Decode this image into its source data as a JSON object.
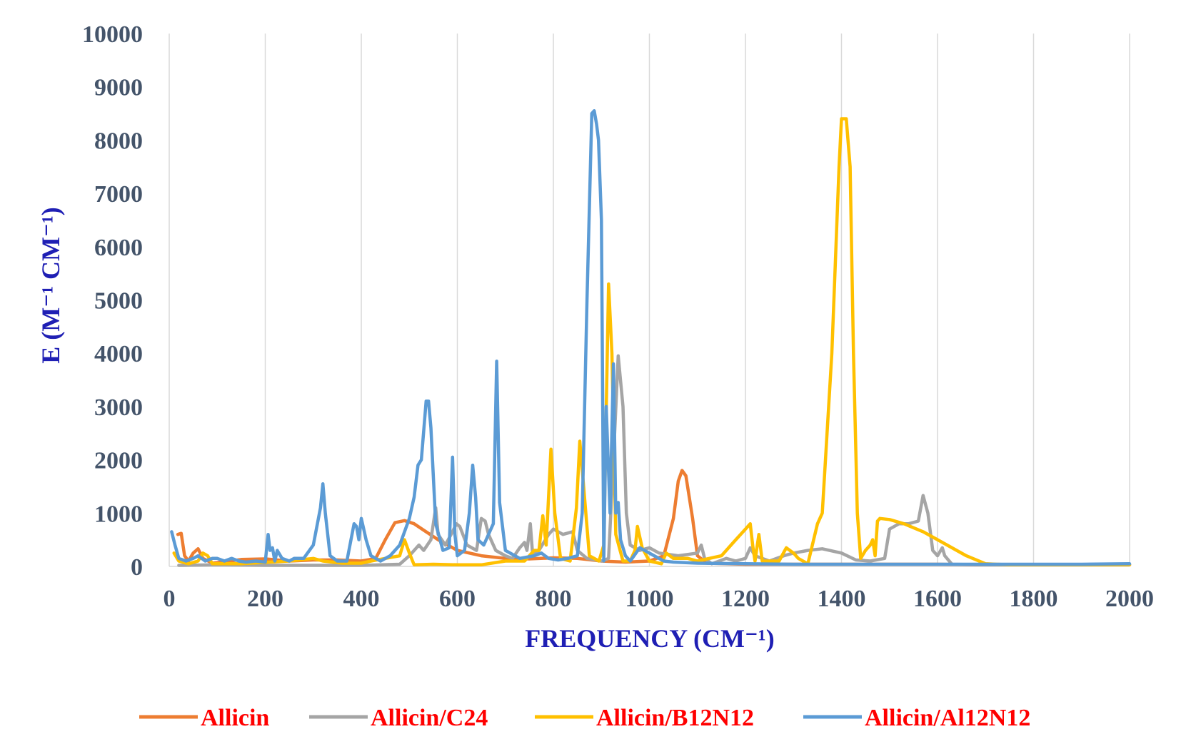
{
  "chart_data": {
    "type": "line",
    "xlabel": "FREQUENCY (CM⁻¹)",
    "ylabel": "E (M⁻¹ CM⁻¹)",
    "xlim": [
      0,
      2000
    ],
    "ylim": [
      0,
      10000
    ],
    "x_ticks": [
      "0",
      "200",
      "400",
      "600",
      "800",
      "1000",
      "1200",
      "1400",
      "1600",
      "1800",
      "2000"
    ],
    "y_ticks": [
      "0",
      "1000",
      "2000",
      "3000",
      "4000",
      "5000",
      "6000",
      "7000",
      "8000",
      "9000",
      "10000"
    ],
    "grid": "vertical",
    "legend_position": "bottom",
    "colors": {
      "axis_text": "#44546a",
      "axis_title": "#1f1fb4",
      "legend_text": "#ff0000",
      "grid": "#d9d9d9"
    },
    "series": [
      {
        "name": "Allicin",
        "color": "#ed7d31",
        "points": [
          [
            18,
            600
          ],
          [
            25,
            620
          ],
          [
            32,
            200
          ],
          [
            40,
            100
          ],
          [
            50,
            250
          ],
          [
            60,
            330
          ],
          [
            70,
            150
          ],
          [
            90,
            60
          ],
          [
            110,
            80
          ],
          [
            150,
            130
          ],
          [
            200,
            140
          ],
          [
            250,
            100
          ],
          [
            300,
            120
          ],
          [
            350,
            120
          ],
          [
            400,
            100
          ],
          [
            430,
            150
          ],
          [
            450,
            500
          ],
          [
            470,
            820
          ],
          [
            490,
            860
          ],
          [
            510,
            800
          ],
          [
            530,
            680
          ],
          [
            560,
            500
          ],
          [
            600,
            300
          ],
          [
            650,
            200
          ],
          [
            700,
            150
          ],
          [
            750,
            140
          ],
          [
            800,
            160
          ],
          [
            850,
            150
          ],
          [
            900,
            100
          ],
          [
            950,
            80
          ],
          [
            1000,
            100
          ],
          [
            1030,
            200
          ],
          [
            1050,
            900
          ],
          [
            1060,
            1600
          ],
          [
            1068,
            1800
          ],
          [
            1076,
            1700
          ],
          [
            1090,
            900
          ],
          [
            1100,
            200
          ],
          [
            1120,
            60
          ],
          [
            1200,
            40
          ],
          [
            1300,
            40
          ],
          [
            1400,
            40
          ],
          [
            1500,
            40
          ],
          [
            1600,
            40
          ],
          [
            1700,
            30
          ],
          [
            1800,
            30
          ],
          [
            1900,
            30
          ],
          [
            2000,
            30
          ]
        ]
      },
      {
        "name": "Allicin/C24",
        "color": "#a5a5a5",
        "points": [
          [
            20,
            20
          ],
          [
            100,
            30
          ],
          [
            200,
            20
          ],
          [
            300,
            20
          ],
          [
            400,
            20
          ],
          [
            480,
            40
          ],
          [
            500,
            200
          ],
          [
            520,
            400
          ],
          [
            530,
            300
          ],
          [
            545,
            500
          ],
          [
            555,
            1100
          ],
          [
            560,
            600
          ],
          [
            575,
            400
          ],
          [
            590,
            650
          ],
          [
            598,
            800
          ],
          [
            605,
            750
          ],
          [
            620,
            400
          ],
          [
            640,
            300
          ],
          [
            650,
            900
          ],
          [
            658,
            850
          ],
          [
            665,
            600
          ],
          [
            680,
            300
          ],
          [
            700,
            200
          ],
          [
            715,
            150
          ],
          [
            730,
            350
          ],
          [
            740,
            450
          ],
          [
            745,
            300
          ],
          [
            752,
            800
          ],
          [
            757,
            200
          ],
          [
            770,
            300
          ],
          [
            790,
            600
          ],
          [
            800,
            700
          ],
          [
            820,
            600
          ],
          [
            840,
            650
          ],
          [
            850,
            300
          ],
          [
            870,
            150
          ],
          [
            900,
            100
          ],
          [
            915,
            150
          ],
          [
            925,
            2000
          ],
          [
            935,
            3950
          ],
          [
            945,
            3000
          ],
          [
            952,
            1000
          ],
          [
            960,
            400
          ],
          [
            980,
            300
          ],
          [
            1000,
            350
          ],
          [
            1020,
            250
          ],
          [
            1060,
            200
          ],
          [
            1100,
            250
          ],
          [
            1108,
            400
          ],
          [
            1115,
            150
          ],
          [
            1130,
            50
          ],
          [
            1160,
            150
          ],
          [
            1180,
            100
          ],
          [
            1200,
            150
          ],
          [
            1210,
            350
          ],
          [
            1220,
            200
          ],
          [
            1250,
            100
          ],
          [
            1280,
            200
          ],
          [
            1300,
            250
          ],
          [
            1330,
            300
          ],
          [
            1360,
            330
          ],
          [
            1400,
            250
          ],
          [
            1430,
            120
          ],
          [
            1460,
            100
          ],
          [
            1490,
            150
          ],
          [
            1500,
            700
          ],
          [
            1520,
            800
          ],
          [
            1540,
            800
          ],
          [
            1560,
            850
          ],
          [
            1570,
            1330
          ],
          [
            1580,
            1000
          ],
          [
            1590,
            300
          ],
          [
            1600,
            200
          ],
          [
            1610,
            350
          ],
          [
            1615,
            200
          ],
          [
            1630,
            40
          ],
          [
            1700,
            30
          ],
          [
            1800,
            30
          ],
          [
            1900,
            30
          ],
          [
            2000,
            30
          ]
        ]
      },
      {
        "name": "Allicin/B12N12",
        "color": "#ffc000",
        "points": [
          [
            10,
            250
          ],
          [
            20,
            100
          ],
          [
            40,
            50
          ],
          [
            60,
            100
          ],
          [
            70,
            250
          ],
          [
            80,
            200
          ],
          [
            90,
            50
          ],
          [
            150,
            50
          ],
          [
            250,
            100
          ],
          [
            300,
            150
          ],
          [
            320,
            100
          ],
          [
            360,
            60
          ],
          [
            400,
            60
          ],
          [
            420,
            100
          ],
          [
            450,
            150
          ],
          [
            480,
            200
          ],
          [
            490,
            500
          ],
          [
            500,
            250
          ],
          [
            510,
            30
          ],
          [
            550,
            40
          ],
          [
            600,
            30
          ],
          [
            650,
            30
          ],
          [
            700,
            100
          ],
          [
            740,
            100
          ],
          [
            760,
            300
          ],
          [
            770,
            300
          ],
          [
            778,
            950
          ],
          [
            785,
            400
          ],
          [
            795,
            2200
          ],
          [
            803,
            1000
          ],
          [
            815,
            150
          ],
          [
            835,
            100
          ],
          [
            848,
            1100
          ],
          [
            855,
            2350
          ],
          [
            863,
            1500
          ],
          [
            875,
            200
          ],
          [
            895,
            100
          ],
          [
            905,
            400
          ],
          [
            915,
            5300
          ],
          [
            922,
            4000
          ],
          [
            930,
            600
          ],
          [
            945,
            100
          ],
          [
            960,
            100
          ],
          [
            970,
            300
          ],
          [
            975,
            750
          ],
          [
            985,
            350
          ],
          [
            1000,
            100
          ],
          [
            1025,
            50
          ],
          [
            1035,
            250
          ],
          [
            1050,
            150
          ],
          [
            1080,
            150
          ],
          [
            1100,
            100
          ],
          [
            1150,
            200
          ],
          [
            1180,
            500
          ],
          [
            1200,
            700
          ],
          [
            1210,
            800
          ],
          [
            1215,
            400
          ],
          [
            1220,
            100
          ],
          [
            1228,
            600
          ],
          [
            1235,
            100
          ],
          [
            1250,
            100
          ],
          [
            1270,
            100
          ],
          [
            1285,
            350
          ],
          [
            1300,
            250
          ],
          [
            1310,
            150
          ],
          [
            1330,
            50
          ],
          [
            1350,
            800
          ],
          [
            1360,
            1000
          ],
          [
            1380,
            4000
          ],
          [
            1395,
            7500
          ],
          [
            1400,
            8400
          ],
          [
            1410,
            8400
          ],
          [
            1418,
            7500
          ],
          [
            1425,
            4000
          ],
          [
            1433,
            1000
          ],
          [
            1440,
            150
          ],
          [
            1450,
            300
          ],
          [
            1460,
            400
          ],
          [
            1465,
            500
          ],
          [
            1470,
            200
          ],
          [
            1475,
            850
          ],
          [
            1480,
            900
          ],
          [
            1500,
            880
          ],
          [
            1530,
            800
          ],
          [
            1570,
            650
          ],
          [
            1620,
            400
          ],
          [
            1660,
            200
          ],
          [
            1700,
            50
          ],
          [
            1750,
            30
          ],
          [
            1800,
            30
          ],
          [
            1900,
            30
          ],
          [
            2000,
            30
          ]
        ]
      },
      {
        "name": "Allicin/Al12N12",
        "color": "#5b9bd5",
        "points": [
          [
            5,
            650
          ],
          [
            12,
            400
          ],
          [
            20,
            150
          ],
          [
            35,
            100
          ],
          [
            50,
            150
          ],
          [
            60,
            200
          ],
          [
            75,
            100
          ],
          [
            90,
            150
          ],
          [
            100,
            150
          ],
          [
            115,
            100
          ],
          [
            130,
            150
          ],
          [
            145,
            100
          ],
          [
            160,
            80
          ],
          [
            180,
            100
          ],
          [
            200,
            80
          ],
          [
            206,
            600
          ],
          [
            210,
            300
          ],
          [
            215,
            350
          ],
          [
            220,
            100
          ],
          [
            225,
            300
          ],
          [
            235,
            150
          ],
          [
            250,
            100
          ],
          [
            260,
            150
          ],
          [
            268,
            150
          ],
          [
            280,
            150
          ],
          [
            300,
            400
          ],
          [
            315,
            1100
          ],
          [
            320,
            1550
          ],
          [
            325,
            1000
          ],
          [
            335,
            200
          ],
          [
            350,
            100
          ],
          [
            370,
            100
          ],
          [
            385,
            800
          ],
          [
            390,
            750
          ],
          [
            395,
            500
          ],
          [
            400,
            900
          ],
          [
            405,
            700
          ],
          [
            410,
            500
          ],
          [
            420,
            200
          ],
          [
            440,
            100
          ],
          [
            460,
            200
          ],
          [
            480,
            400
          ],
          [
            500,
            900
          ],
          [
            510,
            1300
          ],
          [
            518,
            1900
          ],
          [
            525,
            2000
          ],
          [
            535,
            3100
          ],
          [
            540,
            3100
          ],
          [
            545,
            2600
          ],
          [
            555,
            800
          ],
          [
            570,
            300
          ],
          [
            583,
            350
          ],
          [
            590,
            2050
          ],
          [
            595,
            600
          ],
          [
            600,
            200
          ],
          [
            615,
            300
          ],
          [
            625,
            1000
          ],
          [
            632,
            1900
          ],
          [
            638,
            1300
          ],
          [
            643,
            500
          ],
          [
            655,
            400
          ],
          [
            675,
            800
          ],
          [
            682,
            3850
          ],
          [
            688,
            1200
          ],
          [
            700,
            300
          ],
          [
            730,
            150
          ],
          [
            760,
            200
          ],
          [
            775,
            250
          ],
          [
            790,
            150
          ],
          [
            810,
            120
          ],
          [
            830,
            150
          ],
          [
            850,
            200
          ],
          [
            860,
            1000
          ],
          [
            870,
            5000
          ],
          [
            880,
            8500
          ],
          [
            885,
            8550
          ],
          [
            890,
            8300
          ],
          [
            894,
            8000
          ],
          [
            900,
            6500
          ],
          [
            905,
            100
          ],
          [
            910,
            3000
          ],
          [
            918,
            1000
          ],
          [
            925,
            3800
          ],
          [
            930,
            1000
          ],
          [
            935,
            1200
          ],
          [
            940,
            500
          ],
          [
            950,
            200
          ],
          [
            960,
            100
          ],
          [
            980,
            350
          ],
          [
            990,
            300
          ],
          [
            1010,
            200
          ],
          [
            1030,
            100
          ],
          [
            1050,
            80
          ],
          [
            1100,
            60
          ],
          [
            1200,
            50
          ],
          [
            1300,
            40
          ],
          [
            1400,
            40
          ],
          [
            1500,
            40
          ],
          [
            1600,
            40
          ],
          [
            1700,
            40
          ],
          [
            1800,
            40
          ],
          [
            1900,
            40
          ],
          [
            2000,
            50
          ]
        ]
      }
    ]
  }
}
